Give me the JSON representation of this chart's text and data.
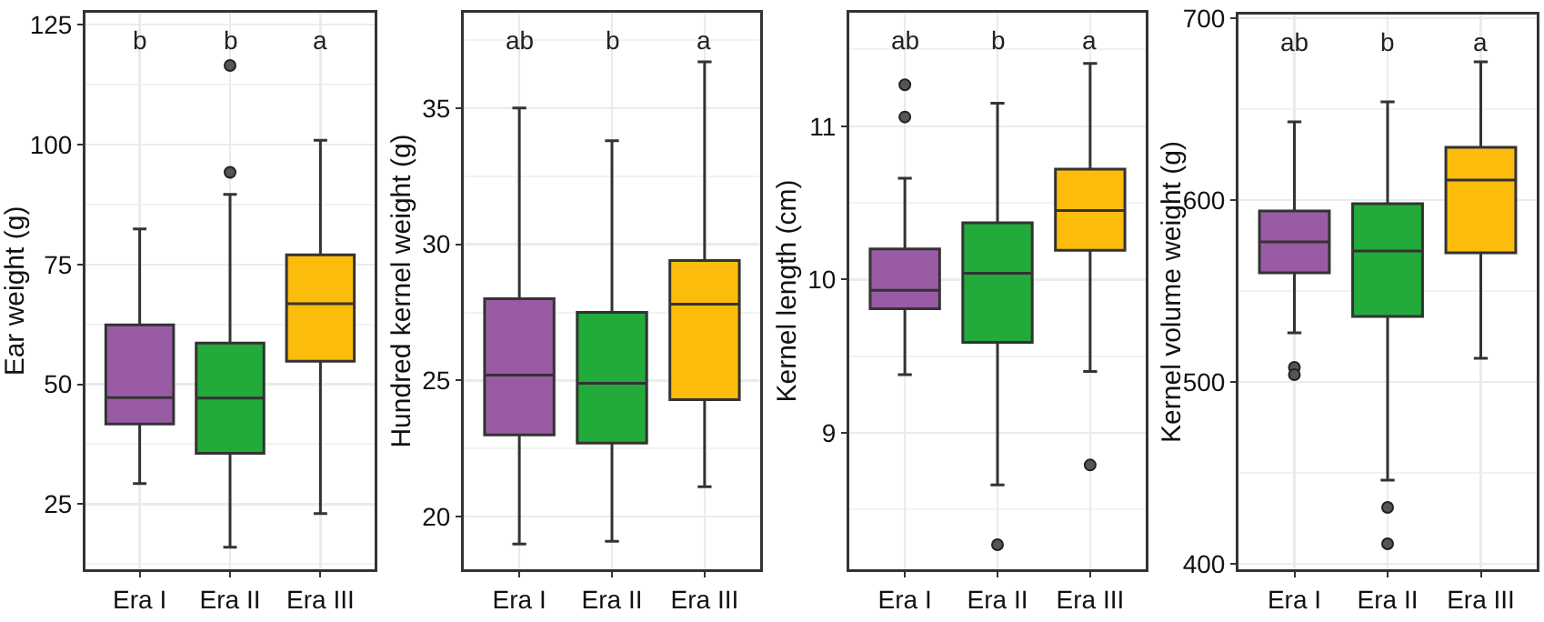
{
  "chart_data": [
    {
      "type": "box",
      "ylabel": "Ear weight (g)",
      "categories": [
        "Era I",
        "Era II",
        "Era III"
      ],
      "colors": [
        "#9a5ba5",
        "#22aa3a",
        "#fbbc0c"
      ],
      "ylim": [
        11.4,
        127.5
      ],
      "yticks": [
        25,
        50,
        75,
        100,
        125
      ],
      "grid": true,
      "boxes": [
        {
          "low": 29.3,
          "q1": 41.7,
          "median": 47.2,
          "q3": 62.4,
          "high": 82.4
        },
        {
          "low": 16.0,
          "q1": 35.6,
          "median": 47.1,
          "q3": 58.6,
          "high": 89.6,
          "outliers": [
            116.5,
            94.2
          ]
        },
        {
          "low": 23.0,
          "q1": 54.8,
          "median": 66.8,
          "q3": 77.0,
          "high": 100.9
        }
      ],
      "annotations": [
        "b",
        "b",
        "a"
      ]
    },
    {
      "type": "box",
      "ylabel": "Hundred kernel weight (g)",
      "categories": [
        "Era I",
        "Era II",
        "Era III"
      ],
      "colors": [
        "#9a5ba5",
        "#22aa3a",
        "#fbbc0c"
      ],
      "ylim": [
        18.07,
        38.5
      ],
      "yticks": [
        20,
        25,
        30,
        35
      ],
      "grid": true,
      "boxes": [
        {
          "low": 19.0,
          "q1": 23.0,
          "median": 25.2,
          "q3": 28.0,
          "high": 35.0
        },
        {
          "low": 19.1,
          "q1": 22.7,
          "median": 24.9,
          "q3": 27.5,
          "high": 33.8
        },
        {
          "low": 21.1,
          "q1": 24.3,
          "median": 27.8,
          "q3": 29.4,
          "high": 36.7
        }
      ],
      "annotations": [
        "ab",
        "b",
        "a"
      ]
    },
    {
      "type": "box",
      "ylabel": "Kernel length (cm)",
      "categories": [
        "Era I",
        "Era II",
        "Era III"
      ],
      "colors": [
        "#9a5ba5",
        "#22aa3a",
        "#fbbc0c"
      ],
      "ylim": [
        8.11,
        11.74
      ],
      "yticks": [
        9,
        10,
        11
      ],
      "grid": true,
      "boxes": [
        {
          "low": 9.38,
          "q1": 9.81,
          "median": 9.93,
          "q3": 10.2,
          "high": 10.66,
          "outliers": [
            11.27,
            11.06
          ]
        },
        {
          "low": 8.66,
          "q1": 9.59,
          "median": 10.04,
          "q3": 10.37,
          "high": 11.15,
          "outliers": [
            8.27
          ]
        },
        {
          "low": 9.4,
          "q1": 10.19,
          "median": 10.45,
          "q3": 10.72,
          "high": 11.41,
          "outliers": [
            8.79
          ]
        }
      ],
      "annotations": [
        "ab",
        "b",
        "a"
      ]
    },
    {
      "type": "box",
      "ylabel": "Kernel volume weight (g)",
      "categories": [
        "Era I",
        "Era II",
        "Era III"
      ],
      "colors": [
        "#9a5ba5",
        "#22aa3a",
        "#fbbc0c"
      ],
      "ylim": [
        397,
        702
      ],
      "yticks": [
        400,
        500,
        600,
        700
      ],
      "grid": true,
      "boxes": [
        {
          "low": 527,
          "q1": 560,
          "median": 577,
          "q3": 594,
          "high": 643,
          "outliers": [
            508,
            504
          ]
        },
        {
          "low": 446,
          "q1": 536,
          "median": 572,
          "q3": 598,
          "high": 654,
          "outliers": [
            431,
            411
          ]
        },
        {
          "low": 513,
          "q1": 571,
          "median": 611,
          "q3": 629,
          "high": 676
        }
      ],
      "annotations": [
        "ab",
        "b",
        "a"
      ]
    }
  ]
}
